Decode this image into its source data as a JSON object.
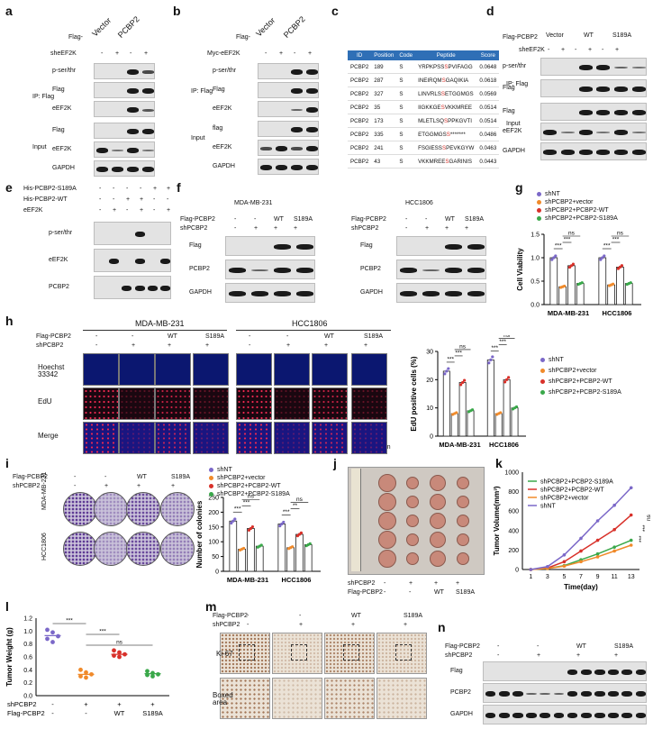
{
  "panels": {
    "a": {
      "letter": "a",
      "top_label": "Flag-",
      "cols": [
        "Vector",
        "PCBP2"
      ],
      "sh_label": "sheEF2K",
      "sh_marks": [
        "-",
        "+",
        "-",
        "+"
      ],
      "ip_label": "IP: Flag",
      "input_label": "Input",
      "rows_ip": [
        "p-ser/thr",
        "Flag",
        "eEF2K"
      ],
      "rows_input": [
        "Flag",
        "eEF2K",
        "GAPDH"
      ]
    },
    "b": {
      "letter": "b",
      "top_label": "Flag-",
      "cols": [
        "Vector",
        "PCBP2"
      ],
      "sh_label": "Myc-eEF2K",
      "sh_marks": [
        "-",
        "+",
        "-",
        "+"
      ],
      "ip_label": "IP: Flag",
      "input_label": "Input",
      "rows_ip": [
        "p-ser/thr",
        "Flag",
        "eEF2K"
      ],
      "rows_input": [
        "flag",
        "eEF2K",
        "GAPDH"
      ]
    },
    "c": {
      "letter": "c",
      "headers": [
        "ID",
        "Position",
        "Code",
        "Peptide",
        "Score"
      ],
      "rows": [
        [
          "PCBP2",
          "189",
          "S",
          "YRPKPSSSPVIFAGG",
          "0.0648"
        ],
        [
          "PCBP2",
          "287",
          "S",
          "INEIRQMSGAQIKIA",
          "0.0618"
        ],
        [
          "PCBP2",
          "327",
          "S",
          "LINVRLSSETGGMGS",
          "0.0569"
        ],
        [
          "PCBP2",
          "35",
          "S",
          "IIGKKGESVKKMREE",
          "0.0514"
        ],
        [
          "PCBP2",
          "173",
          "S",
          "MLETLSQSPPKGVTI",
          "0.0514"
        ],
        [
          "PCBP2",
          "335",
          "S",
          "ETGGMGSS*******",
          "0.0486"
        ],
        [
          "PCBP2",
          "241",
          "S",
          "FSGIESSSPEVKGYW",
          "0.0463"
        ],
        [
          "PCBP2",
          "43",
          "S",
          "VKKMREESGARINIS",
          "0.0443"
        ]
      ]
    },
    "d": {
      "letter": "d",
      "flag_label": "Flag-PCBP2",
      "cols": [
        "Vector",
        "WT",
        "S189A"
      ],
      "sh_label": "sheEF2K",
      "sh_marks": [
        "-",
        "+",
        "-",
        "+",
        "-",
        "+"
      ],
      "ip_label": "IP: Flag",
      "input_label": "Input",
      "rows_ip": [
        "p-ser/thr",
        "Flag"
      ],
      "rows_input": [
        "Flag",
        "eEF2K",
        "GAPDH"
      ]
    },
    "e": {
      "letter": "e",
      "cond_labels": [
        "His-PCBP2-S189A",
        "His-PCBP2-WT",
        "eEF2K"
      ],
      "cond_marks": [
        [
          "-",
          "-",
          "-",
          "-",
          "+",
          "+"
        ],
        [
          "-",
          "-",
          "+",
          "+",
          "-",
          "-"
        ],
        [
          "-",
          "+",
          "-",
          "+",
          "-",
          "+"
        ]
      ],
      "rows": [
        "p-ser/thr",
        "eEF2K",
        "PCBP2"
      ]
    },
    "f": {
      "letter": "f",
      "cells": [
        "MDA-MB-231",
        "HCC1806"
      ],
      "flag_label": "Flag-PCBP2",
      "sh_label": "shPCBP2",
      "flag_marks": [
        "-",
        "-",
        "WT",
        "S189A"
      ],
      "sh_marks": [
        "-",
        "+",
        "+",
        "+"
      ],
      "rows": [
        "Flag",
        "PCBP2",
        "GAPDH"
      ]
    },
    "g": {
      "letter": "g",
      "ylabel": "Cell Viability"
    },
    "h": {
      "letter": "h",
      "cells": [
        "MDA-MB-231",
        "HCC1806"
      ],
      "flag_label": "Flag-PCBP2",
      "sh_label": "shPCBP2",
      "flag_marks": [
        "-",
        "-",
        "WT",
        "S189A"
      ],
      "sh_marks": [
        "-",
        "+",
        "+",
        "+"
      ],
      "rows": [
        "Hoechst 33342",
        "EdU",
        "Merge"
      ],
      "scale": "50 μm",
      "ylabel": "EdU positive cells (%)"
    },
    "i": {
      "letter": "i",
      "flag_label": "Flag-PCBP2",
      "sh_label": "shPCBP2",
      "flag_marks": [
        "-",
        "-",
        "WT",
        "S189A"
      ],
      "sh_marks": [
        "-",
        "+",
        "+",
        "+"
      ],
      "cells": [
        "MDA-MB-231",
        "HCC1806"
      ],
      "ylabel": "Number of colonies"
    },
    "j": {
      "letter": "j",
      "sh_label": "shPCBP2",
      "flag_label": "Flag-PCBP2",
      "sh_marks": [
        "-",
        "+",
        "+",
        "+"
      ],
      "flag_marks": [
        "-",
        "-",
        "WT",
        "S189A"
      ]
    },
    "k": {
      "letter": "k",
      "ylabel": "Tumor Volume(mm³)",
      "xlabel": "Time(day)"
    },
    "l": {
      "letter": "l",
      "ylabel": "Tumor Weight (g)",
      "sh_label": "shPCBP2",
      "flag_label": "Flag-PCBP2",
      "sh_marks": [
        "-",
        "+",
        "+",
        "+"
      ],
      "flag_marks": [
        "-",
        "-",
        "WT",
        "S189A"
      ]
    },
    "m": {
      "letter": "m",
      "flag_label": "Flag-PCBP2",
      "sh_label": "shPCBP2",
      "flag_marks": [
        "-",
        "-",
        "WT",
        "S189A"
      ],
      "sh_marks": [
        "-",
        "+",
        "+",
        "+"
      ],
      "rows": [
        "Ki-67",
        "Boxed area"
      ]
    },
    "n": {
      "letter": "n",
      "flag_label": "Flag-PCBP2",
      "sh_label": "shPCBP2",
      "flag_marks": [
        "-",
        "-",
        "WT",
        "S189A"
      ],
      "sh_marks": [
        "-",
        "+",
        "+",
        "+"
      ],
      "rows": [
        "Flag",
        "PCBP2",
        "GAPDH"
      ]
    }
  },
  "legend4": [
    "shNT",
    "shPCBP2+vector",
    "shPCBP2+PCBP2-WT",
    "shPCBP2+PCBP2-S189A"
  ],
  "legend_k": [
    "shPCBP2+PCBP2-S189A",
    "shPCBP2+PCBP2-WT",
    "shPCBP2+vector",
    "shNT"
  ],
  "colors": {
    "shNT": "#7b68c8",
    "vector": "#f08a2a",
    "wt": "#d8312a",
    "s189a": "#3aa84a"
  },
  "chart_data": [
    {
      "type": "bar",
      "panel": "g",
      "ylabel": "Cell Viability",
      "categories": [
        "MDA-MB-231",
        "HCC1806"
      ],
      "ylim": [
        0,
        1.5
      ],
      "yticks": [
        "0.0",
        "0.5",
        "1.0",
        "1.5"
      ],
      "series": [
        {
          "name": "shNT",
          "values": [
            1.0,
            1.0
          ]
        },
        {
          "name": "shPCBP2+vector",
          "values": [
            0.38,
            0.42
          ]
        },
        {
          "name": "shPCBP2+PCBP2-WT",
          "values": [
            0.83,
            0.8
          ]
        },
        {
          "name": "shPCBP2+PCBP2-S189A",
          "values": [
            0.45,
            0.45
          ]
        }
      ],
      "annotations": [
        "***",
        "***",
        "ns",
        "***",
        "***",
        "ns"
      ]
    },
    {
      "type": "bar",
      "panel": "h",
      "ylabel": "EdU positive cells (%)",
      "categories": [
        "MDA-MB-231",
        "HCC1806"
      ],
      "ylim": [
        0,
        30
      ],
      "yticks": [
        "0",
        "10",
        "20",
        "30"
      ],
      "series": [
        {
          "name": "shNT",
          "values": [
            23,
            27
          ]
        },
        {
          "name": "shPCBP2+vector",
          "values": [
            8,
            8
          ]
        },
        {
          "name": "shPCBP2+PCBP2-WT",
          "values": [
            19,
            20
          ]
        },
        {
          "name": "shPCBP2+PCBP2-S189A",
          "values": [
            9,
            10
          ]
        }
      ],
      "annotations": [
        "***",
        "***",
        "ns",
        "***",
        "***",
        "ns"
      ]
    },
    {
      "type": "bar",
      "panel": "i",
      "ylabel": "Number of colonies",
      "categories": [
        "MDA-MB-231",
        "HCC1806"
      ],
      "ylim": [
        0,
        250
      ],
      "yticks": [
        "0",
        "50",
        "100",
        "150",
        "200",
        "250"
      ],
      "series": [
        {
          "name": "shNT",
          "values": [
            170,
            160
          ]
        },
        {
          "name": "shPCBP2+vector",
          "values": [
            75,
            80
          ]
        },
        {
          "name": "shPCBP2+PCBP2-WT",
          "values": [
            145,
            125
          ]
        },
        {
          "name": "shPCBP2+PCBP2-S189A",
          "values": [
            85,
            90
          ]
        }
      ],
      "annotations": [
        "***",
        "***",
        "ns",
        "***",
        "**",
        "ns"
      ]
    },
    {
      "type": "line",
      "panel": "k",
      "xlabel": "Time(day)",
      "ylabel": "Tumor Volume(mm³)",
      "x": [
        1,
        3,
        5,
        7,
        9,
        11,
        13
      ],
      "xticks": [
        "1",
        "3",
        "5",
        "7",
        "9",
        "11",
        "13"
      ],
      "ylim": [
        0,
        1000
      ],
      "yticks": [
        "0",
        "200",
        "400",
        "600",
        "800",
        "1000"
      ],
      "series": [
        {
          "name": "shPCBP2+PCBP2-S189A",
          "values": [
            0,
            10,
            40,
            100,
            160,
            230,
            300
          ]
        },
        {
          "name": "shPCBP2+PCBP2-WT",
          "values": [
            0,
            15,
            80,
            190,
            300,
            410,
            560
          ]
        },
        {
          "name": "shPCBP2+vector",
          "values": [
            0,
            10,
            35,
            80,
            130,
            190,
            250
          ]
        },
        {
          "name": "shNT",
          "values": [
            0,
            30,
            150,
            320,
            500,
            660,
            840
          ]
        }
      ],
      "annotations": [
        "***",
        "***",
        "ns"
      ]
    },
    {
      "type": "scatter",
      "panel": "l",
      "ylabel": "Tumor Weight (g)",
      "ylim": [
        0,
        1.2
      ],
      "yticks": [
        "0.0",
        "0.2",
        "0.4",
        "0.6",
        "0.8",
        "1.0",
        "1.2"
      ],
      "groups": [
        {
          "name": "shNT",
          "values": [
            1.02,
            0.98,
            0.92,
            0.88,
            0.83
          ],
          "mean": 0.93
        },
        {
          "name": "shPCBP2+vector",
          "values": [
            0.4,
            0.36,
            0.33,
            0.3,
            0.28
          ],
          "mean": 0.33
        },
        {
          "name": "shPCBP2+PCBP2-WT",
          "values": [
            0.7,
            0.67,
            0.64,
            0.62,
            0.6
          ],
          "mean": 0.64
        },
        {
          "name": "shPCBP2+PCBP2-S189A",
          "values": [
            0.38,
            0.35,
            0.33,
            0.32,
            0.3
          ],
          "mean": 0.34
        }
      ],
      "annotations": [
        "***",
        "***",
        "ns"
      ]
    }
  ]
}
